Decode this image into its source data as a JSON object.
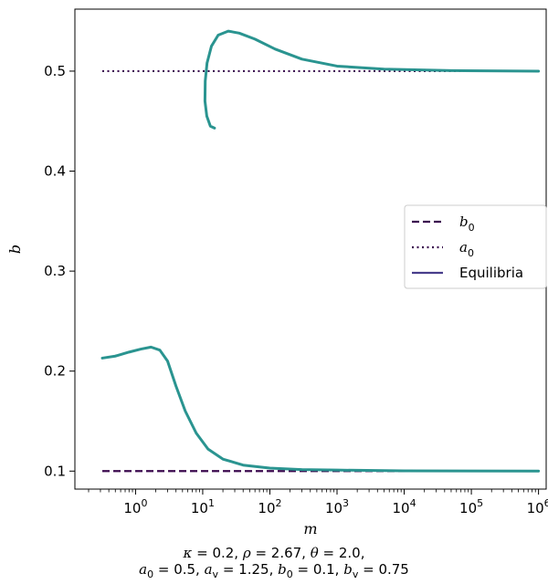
{
  "chart_data": {
    "type": "line",
    "xlabel": "m",
    "ylabel": "b",
    "xscale": "log",
    "xlim": [
      0.125,
      1300000
    ],
    "ylim": [
      0.082,
      0.562
    ],
    "x_ticks": [
      {
        "value": 1,
        "base": "10",
        "exp": "0"
      },
      {
        "value": 10,
        "base": "10",
        "exp": "1"
      },
      {
        "value": 100,
        "base": "10",
        "exp": "2"
      },
      {
        "value": 1000,
        "base": "10",
        "exp": "3"
      },
      {
        "value": 10000,
        "base": "10",
        "exp": "4"
      },
      {
        "value": 100000,
        "base": "10",
        "exp": "5"
      },
      {
        "value": 1000000,
        "base": "10",
        "exp": "6"
      }
    ],
    "y_ticks": [
      {
        "value": 0.1,
        "label": "0.1"
      },
      {
        "value": 0.2,
        "label": "0.2"
      },
      {
        "value": 0.3,
        "label": "0.3"
      },
      {
        "value": 0.4,
        "label": "0.4"
      },
      {
        "value": 0.5,
        "label": "0.5"
      }
    ],
    "grid": false,
    "legend_position": "center-right",
    "series": [
      {
        "name": "b0",
        "legend_main": "b",
        "legend_sub": "0",
        "style": "dashed",
        "color": "#3b0a4f",
        "points": [
          [
            0.32,
            0.1
          ],
          [
            1000000,
            0.1
          ]
        ]
      },
      {
        "name": "a0",
        "legend_main": "a",
        "legend_sub": "0",
        "style": "dotted",
        "color": "#3b0a4f",
        "points": [
          [
            0.32,
            0.5
          ],
          [
            1000000,
            0.5
          ]
        ]
      },
      {
        "name": "Equilibria",
        "legend_main": "Equilibria",
        "legend_sub": "",
        "style": "solid",
        "color": "#483d8b",
        "line_color": "#2a9490",
        "branches": [
          [
            [
              0.32,
              0.213
            ],
            [
              0.5,
              0.215
            ],
            [
              0.8,
              0.219
            ],
            [
              1.2,
              0.222
            ],
            [
              1.7,
              0.224
            ],
            [
              2.3,
              0.221
            ],
            [
              3.0,
              0.21
            ],
            [
              4.0,
              0.185
            ],
            [
              5.5,
              0.16
            ],
            [
              8,
              0.138
            ],
            [
              12,
              0.122
            ],
            [
              20,
              0.112
            ],
            [
              40,
              0.106
            ],
            [
              100,
              0.103
            ],
            [
              300,
              0.1015
            ],
            [
              1000,
              0.101
            ],
            [
              10000,
              0.1003
            ],
            [
              1000000,
              0.1
            ]
          ],
          [
            [
              15,
              0.443
            ],
            [
              13,
              0.445
            ],
            [
              11.5,
              0.455
            ],
            [
              10.8,
              0.47
            ],
            [
              10.9,
              0.49
            ],
            [
              11.6,
              0.508
            ],
            [
              13.5,
              0.525
            ],
            [
              17,
              0.536
            ],
            [
              24,
              0.54
            ],
            [
              35,
              0.538
            ],
            [
              60,
              0.532
            ],
            [
              120,
              0.522
            ],
            [
              300,
              0.512
            ],
            [
              1000,
              0.505
            ],
            [
              5000,
              0.502
            ],
            [
              50000,
              0.5005
            ],
            [
              1000000,
              0.5
            ]
          ]
        ]
      }
    ],
    "caption_line1": [
      {
        "t": "κ",
        "i": true
      },
      {
        "t": " = 0.2, ",
        "i": false
      },
      {
        "t": "ρ",
        "i": true
      },
      {
        "t": " = 2.67, ",
        "i": false
      },
      {
        "t": "θ",
        "i": true
      },
      {
        "t": " = 2.0,",
        "i": false
      }
    ],
    "caption_line2": [
      {
        "t": "a",
        "i": true,
        "sub": "0"
      },
      {
        "t": " = 0.5, ",
        "i": false
      },
      {
        "t": "a",
        "i": true,
        "sub": "v"
      },
      {
        "t": " = 1.25, ",
        "i": false
      },
      {
        "t": "b",
        "i": true,
        "sub": "0"
      },
      {
        "t": " = 0.1, ",
        "i": false
      },
      {
        "t": "b",
        "i": true,
        "sub": "v"
      },
      {
        "t": " = 0.75",
        "i": false
      }
    ]
  }
}
